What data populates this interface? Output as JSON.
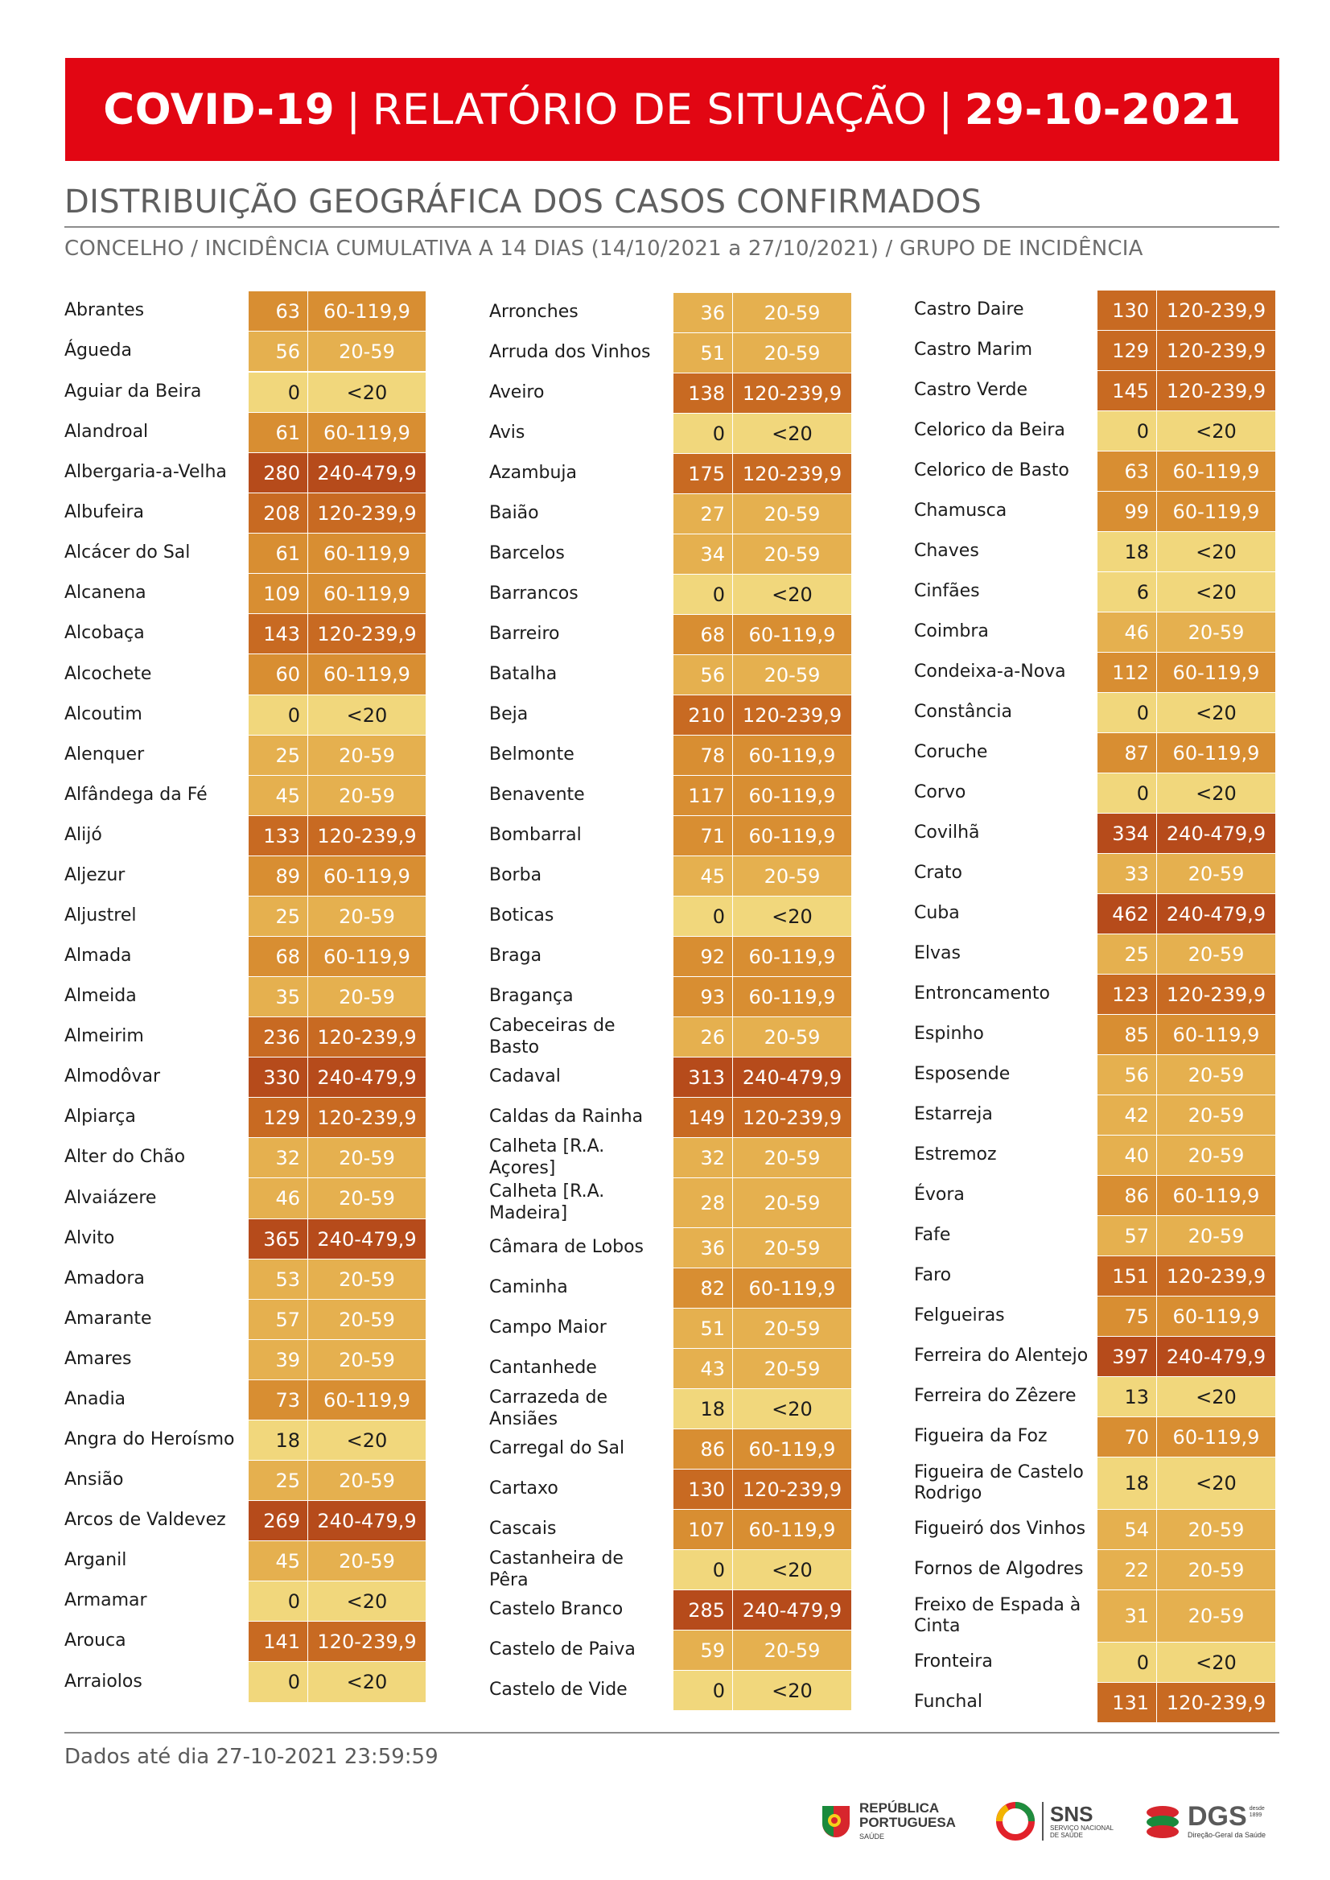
{
  "header": {
    "title_bold": "COVID-19",
    "separator": "|",
    "title_main": "RELATÓRIO DE SITUAÇÃO",
    "title_date": "29-10-2021"
  },
  "section_title": "DISTRIBUIÇÃO GEOGRÁFICA DOS CASOS CONFIRMADOS",
  "section_description": "CONCELHO / INCIDÊNCIA CUMULATIVA A 14 DIAS (14/10/2021 a 27/10/2021) / GRUPO DE INCIDÊNCIA",
  "columns": [
    [
      {
        "name": "Abrantes",
        "value": "63",
        "group": "60-119,9",
        "band": 2
      },
      {
        "name": "Águeda",
        "value": "56",
        "group": "20-59",
        "band": 1
      },
      {
        "name": "Aguiar da Beira",
        "value": "0",
        "group": "<20",
        "band": 0
      },
      {
        "name": "Alandroal",
        "value": "61",
        "group": "60-119,9",
        "band": 2
      },
      {
        "name": "Albergaria-a-Velha",
        "value": "280",
        "group": "240-479,9",
        "band": 4
      },
      {
        "name": "Albufeira",
        "value": "208",
        "group": "120-239,9",
        "band": 3
      },
      {
        "name": "Alcácer do Sal",
        "value": "61",
        "group": "60-119,9",
        "band": 2
      },
      {
        "name": "Alcanena",
        "value": "109",
        "group": "60-119,9",
        "band": 2
      },
      {
        "name": "Alcobaça",
        "value": "143",
        "group": "120-239,9",
        "band": 3
      },
      {
        "name": "Alcochete",
        "value": "60",
        "group": "60-119,9",
        "band": 2
      },
      {
        "name": "Alcoutim",
        "value": "0",
        "group": "<20",
        "band": 0
      },
      {
        "name": "Alenquer",
        "value": "25",
        "group": "20-59",
        "band": 1
      },
      {
        "name": "Alfândega da Fé",
        "value": "45",
        "group": "20-59",
        "band": 1
      },
      {
        "name": "Alijó",
        "value": "133",
        "group": "120-239,9",
        "band": 3
      },
      {
        "name": "Aljezur",
        "value": "89",
        "group": "60-119,9",
        "band": 2
      },
      {
        "name": "Aljustrel",
        "value": "25",
        "group": "20-59",
        "band": 1
      },
      {
        "name": "Almada",
        "value": "68",
        "group": "60-119,9",
        "band": 2
      },
      {
        "name": "Almeida",
        "value": "35",
        "group": "20-59",
        "band": 1
      },
      {
        "name": "Almeirim",
        "value": "236",
        "group": "120-239,9",
        "band": 3
      },
      {
        "name": "Almodôvar",
        "value": "330",
        "group": "240-479,9",
        "band": 4
      },
      {
        "name": "Alpiarça",
        "value": "129",
        "group": "120-239,9",
        "band": 3
      },
      {
        "name": "Alter do Chão",
        "value": "32",
        "group": "20-59",
        "band": 1
      },
      {
        "name": "Alvaiázere",
        "value": "46",
        "group": "20-59",
        "band": 1
      },
      {
        "name": "Alvito",
        "value": "365",
        "group": "240-479,9",
        "band": 4
      },
      {
        "name": "Amadora",
        "value": "53",
        "group": "20-59",
        "band": 1
      },
      {
        "name": "Amarante",
        "value": "57",
        "group": "20-59",
        "band": 1
      },
      {
        "name": "Amares",
        "value": "39",
        "group": "20-59",
        "band": 1
      },
      {
        "name": "Anadia",
        "value": "73",
        "group": "60-119,9",
        "band": 2
      },
      {
        "name": "Angra do Heroísmo",
        "value": "18",
        "group": "<20",
        "band": 0
      },
      {
        "name": "Ansião",
        "value": "25",
        "group": "20-59",
        "band": 1
      },
      {
        "name": "Arcos de Valdevez",
        "value": "269",
        "group": "240-479,9",
        "band": 4
      },
      {
        "name": "Arganil",
        "value": "45",
        "group": "20-59",
        "band": 1
      },
      {
        "name": "Armamar",
        "value": "0",
        "group": "<20",
        "band": 0
      },
      {
        "name": "Arouca",
        "value": "141",
        "group": "120-239,9",
        "band": 3
      },
      {
        "name": "Arraiolos",
        "value": "0",
        "group": "<20",
        "band": 0
      }
    ],
    [
      {
        "name": "Arronches",
        "value": "36",
        "group": "20-59",
        "band": 1
      },
      {
        "name": "Arruda dos Vinhos",
        "value": "51",
        "group": "20-59",
        "band": 1
      },
      {
        "name": "Aveiro",
        "value": "138",
        "group": "120-239,9",
        "band": 3
      },
      {
        "name": "Avis",
        "value": "0",
        "group": "<20",
        "band": 0
      },
      {
        "name": "Azambuja",
        "value": "175",
        "group": "120-239,9",
        "band": 3
      },
      {
        "name": "Baião",
        "value": "27",
        "group": "20-59",
        "band": 1
      },
      {
        "name": "Barcelos",
        "value": "34",
        "group": "20-59",
        "band": 1
      },
      {
        "name": "Barrancos",
        "value": "0",
        "group": "<20",
        "band": 0
      },
      {
        "name": "Barreiro",
        "value": "68",
        "group": "60-119,9",
        "band": 2
      },
      {
        "name": "Batalha",
        "value": "56",
        "group": "20-59",
        "band": 1
      },
      {
        "name": "Beja",
        "value": "210",
        "group": "120-239,9",
        "band": 3
      },
      {
        "name": "Belmonte",
        "value": "78",
        "group": "60-119,9",
        "band": 2
      },
      {
        "name": "Benavente",
        "value": "117",
        "group": "60-119,9",
        "band": 2
      },
      {
        "name": "Bombarral",
        "value": "71",
        "group": "60-119,9",
        "band": 2
      },
      {
        "name": "Borba",
        "value": "45",
        "group": "20-59",
        "band": 1
      },
      {
        "name": "Boticas",
        "value": "0",
        "group": "<20",
        "band": 0
      },
      {
        "name": "Braga",
        "value": "92",
        "group": "60-119,9",
        "band": 2
      },
      {
        "name": "Bragança",
        "value": "93",
        "group": "60-119,9",
        "band": 2
      },
      {
        "name": "Cabeceiras de Basto",
        "value": "26",
        "group": "20-59",
        "band": 1
      },
      {
        "name": "Cadaval",
        "value": "313",
        "group": "240-479,9",
        "band": 4
      },
      {
        "name": "Caldas da Rainha",
        "value": "149",
        "group": "120-239,9",
        "band": 3
      },
      {
        "name": "Calheta [R.A. Açores]",
        "value": "32",
        "group": "20-59",
        "band": 1
      },
      {
        "name": "Calheta [R.A. Madeira]",
        "value": "28",
        "group": "20-59",
        "band": 1
      },
      {
        "name": "Câmara de Lobos",
        "value": "36",
        "group": "20-59",
        "band": 1
      },
      {
        "name": "Caminha",
        "value": "82",
        "group": "60-119,9",
        "band": 2
      },
      {
        "name": "Campo Maior",
        "value": "51",
        "group": "20-59",
        "band": 1
      },
      {
        "name": "Cantanhede",
        "value": "43",
        "group": "20-59",
        "band": 1
      },
      {
        "name": "Carrazeda de Ansiães",
        "value": "18",
        "group": "<20",
        "band": 0
      },
      {
        "name": "Carregal do Sal",
        "value": "86",
        "group": "60-119,9",
        "band": 2
      },
      {
        "name": "Cartaxo",
        "value": "130",
        "group": "120-239,9",
        "band": 3
      },
      {
        "name": "Cascais",
        "value": "107",
        "group": "60-119,9",
        "band": 2
      },
      {
        "name": "Castanheira de Pêra",
        "value": "0",
        "group": "<20",
        "band": 0
      },
      {
        "name": "Castelo Branco",
        "value": "285",
        "group": "240-479,9",
        "band": 4
      },
      {
        "name": "Castelo de Paiva",
        "value": "59",
        "group": "20-59",
        "band": 1
      },
      {
        "name": "Castelo de Vide",
        "value": "0",
        "group": "<20",
        "band": 0
      }
    ],
    [
      {
        "name": "Castro Daire",
        "value": "130",
        "group": "120-239,9",
        "band": 3
      },
      {
        "name": "Castro Marim",
        "value": "129",
        "group": "120-239,9",
        "band": 3
      },
      {
        "name": "Castro Verde",
        "value": "145",
        "group": "120-239,9",
        "band": 3
      },
      {
        "name": "Celorico da Beira",
        "value": "0",
        "group": "<20",
        "band": 0
      },
      {
        "name": "Celorico de Basto",
        "value": "63",
        "group": "60-119,9",
        "band": 2
      },
      {
        "name": "Chamusca",
        "value": "99",
        "group": "60-119,9",
        "band": 2
      },
      {
        "name": "Chaves",
        "value": "18",
        "group": "<20",
        "band": 0
      },
      {
        "name": "Cinfães",
        "value": "6",
        "group": "<20",
        "band": 0
      },
      {
        "name": "Coimbra",
        "value": "46",
        "group": "20-59",
        "band": 1
      },
      {
        "name": "Condeixa-a-Nova",
        "value": "112",
        "group": "60-119,9",
        "band": 2
      },
      {
        "name": "Constância",
        "value": "0",
        "group": "<20",
        "band": 0
      },
      {
        "name": "Coruche",
        "value": "87",
        "group": "60-119,9",
        "band": 2
      },
      {
        "name": "Corvo",
        "value": "0",
        "group": "<20",
        "band": 0
      },
      {
        "name": "Covilhã",
        "value": "334",
        "group": "240-479,9",
        "band": 4
      },
      {
        "name": "Crato",
        "value": "33",
        "group": "20-59",
        "band": 1
      },
      {
        "name": "Cuba",
        "value": "462",
        "group": "240-479,9",
        "band": 4
      },
      {
        "name": "Elvas",
        "value": "25",
        "group": "20-59",
        "band": 1
      },
      {
        "name": "Entroncamento",
        "value": "123",
        "group": "120-239,9",
        "band": 3
      },
      {
        "name": "Espinho",
        "value": "85",
        "group": "60-119,9",
        "band": 2
      },
      {
        "name": "Esposende",
        "value": "56",
        "group": "20-59",
        "band": 1
      },
      {
        "name": "Estarreja",
        "value": "42",
        "group": "20-59",
        "band": 1
      },
      {
        "name": "Estremoz",
        "value": "40",
        "group": "20-59",
        "band": 1
      },
      {
        "name": "Évora",
        "value": "86",
        "group": "60-119,9",
        "band": 2
      },
      {
        "name": "Fafe",
        "value": "57",
        "group": "20-59",
        "band": 1
      },
      {
        "name": "Faro",
        "value": "151",
        "group": "120-239,9",
        "band": 3
      },
      {
        "name": "Felgueiras",
        "value": "75",
        "group": "60-119,9",
        "band": 2
      },
      {
        "name": "Ferreira do Alentejo",
        "value": "397",
        "group": "240-479,9",
        "band": 4
      },
      {
        "name": "Ferreira do Zêzere",
        "value": "13",
        "group": "<20",
        "band": 0
      },
      {
        "name": "Figueira da Foz",
        "value": "70",
        "group": "60-119,9",
        "band": 2
      },
      {
        "name": "Figueira de Castelo Rodrigo",
        "value": "18",
        "group": "<20",
        "band": 0
      },
      {
        "name": "Figueiró dos Vinhos",
        "value": "54",
        "group": "20-59",
        "band": 1
      },
      {
        "name": "Fornos de Algodres",
        "value": "22",
        "group": "20-59",
        "band": 1
      },
      {
        "name": "Freixo de Espada à Cinta",
        "value": "31",
        "group": "20-59",
        "band": 1
      },
      {
        "name": "Fronteira",
        "value": "0",
        "group": "<20",
        "band": 0
      },
      {
        "name": "Funchal",
        "value": "131",
        "group": "120-239,9",
        "band": 3
      }
    ]
  ],
  "footer_text": "Dados até dia 27-10-2021 23:59:59",
  "logos": {
    "republica_line1": "REPÚBLICA",
    "republica_line2": "PORTUGUESA",
    "republica_line3": "SAÚDE",
    "sns_title": "SNS",
    "sns_sub1": "SERVIÇO NACIONAL",
    "sns_sub2": "DE SAÚDE",
    "dgs_title": "DGS",
    "dgs_since": "desde 1899",
    "dgs_sub": "Direção-Geral da Saúde"
  },
  "colors": {
    "banner_red": "#e20613",
    "band_lt20": "#f1d77c",
    "band_20_59": "#e5b04f",
    "band_60_119": "#d88e32",
    "band_120_239": "#c86a22",
    "band_240_479": "#b64b1b"
  }
}
